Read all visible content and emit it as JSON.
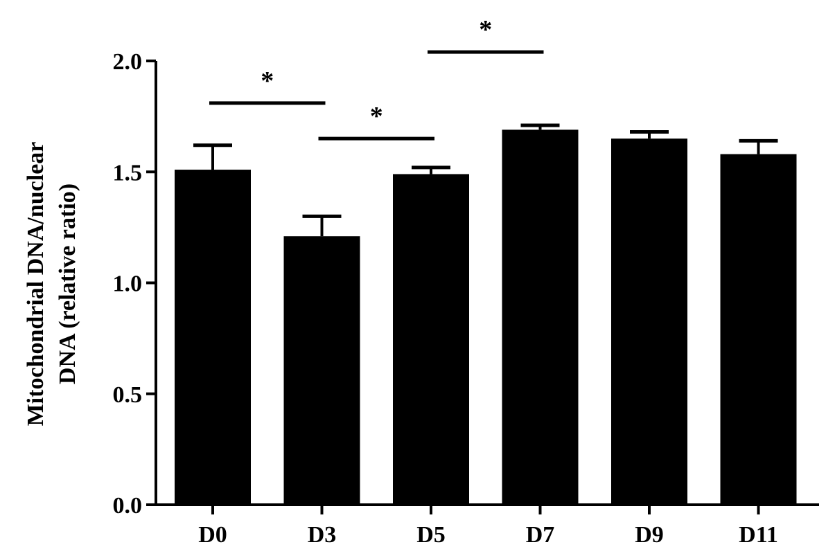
{
  "chart_data": {
    "type": "bar",
    "title": "",
    "xlabel": "",
    "ylabel_lines": [
      "Mitochondrial DNA/nuclear",
      "DNA (relative ratio)"
    ],
    "categories": [
      "D0",
      "D3",
      "D5",
      "D7",
      "D9",
      "D11"
    ],
    "values": [
      1.51,
      1.21,
      1.49,
      1.69,
      1.65,
      1.58
    ],
    "error_upper": [
      0.11,
      0.09,
      0.03,
      0.02,
      0.03,
      0.06
    ],
    "ylim": [
      0.0,
      2.0
    ],
    "yticks": [
      0.0,
      0.5,
      1.0,
      1.5,
      2.0
    ],
    "ytick_labels": [
      "0.0",
      "0.5",
      "1.0",
      "1.5",
      "2.0"
    ],
    "bar_color": "#000000",
    "grid": false,
    "significance": [
      {
        "from": "D0",
        "to": "D3",
        "label": "*",
        "y": 1.81
      },
      {
        "from": "D3",
        "to": "D5",
        "label": "*",
        "y": 1.65
      },
      {
        "from": "D5",
        "to": "D7",
        "label": "*",
        "y": 2.04
      }
    ]
  }
}
